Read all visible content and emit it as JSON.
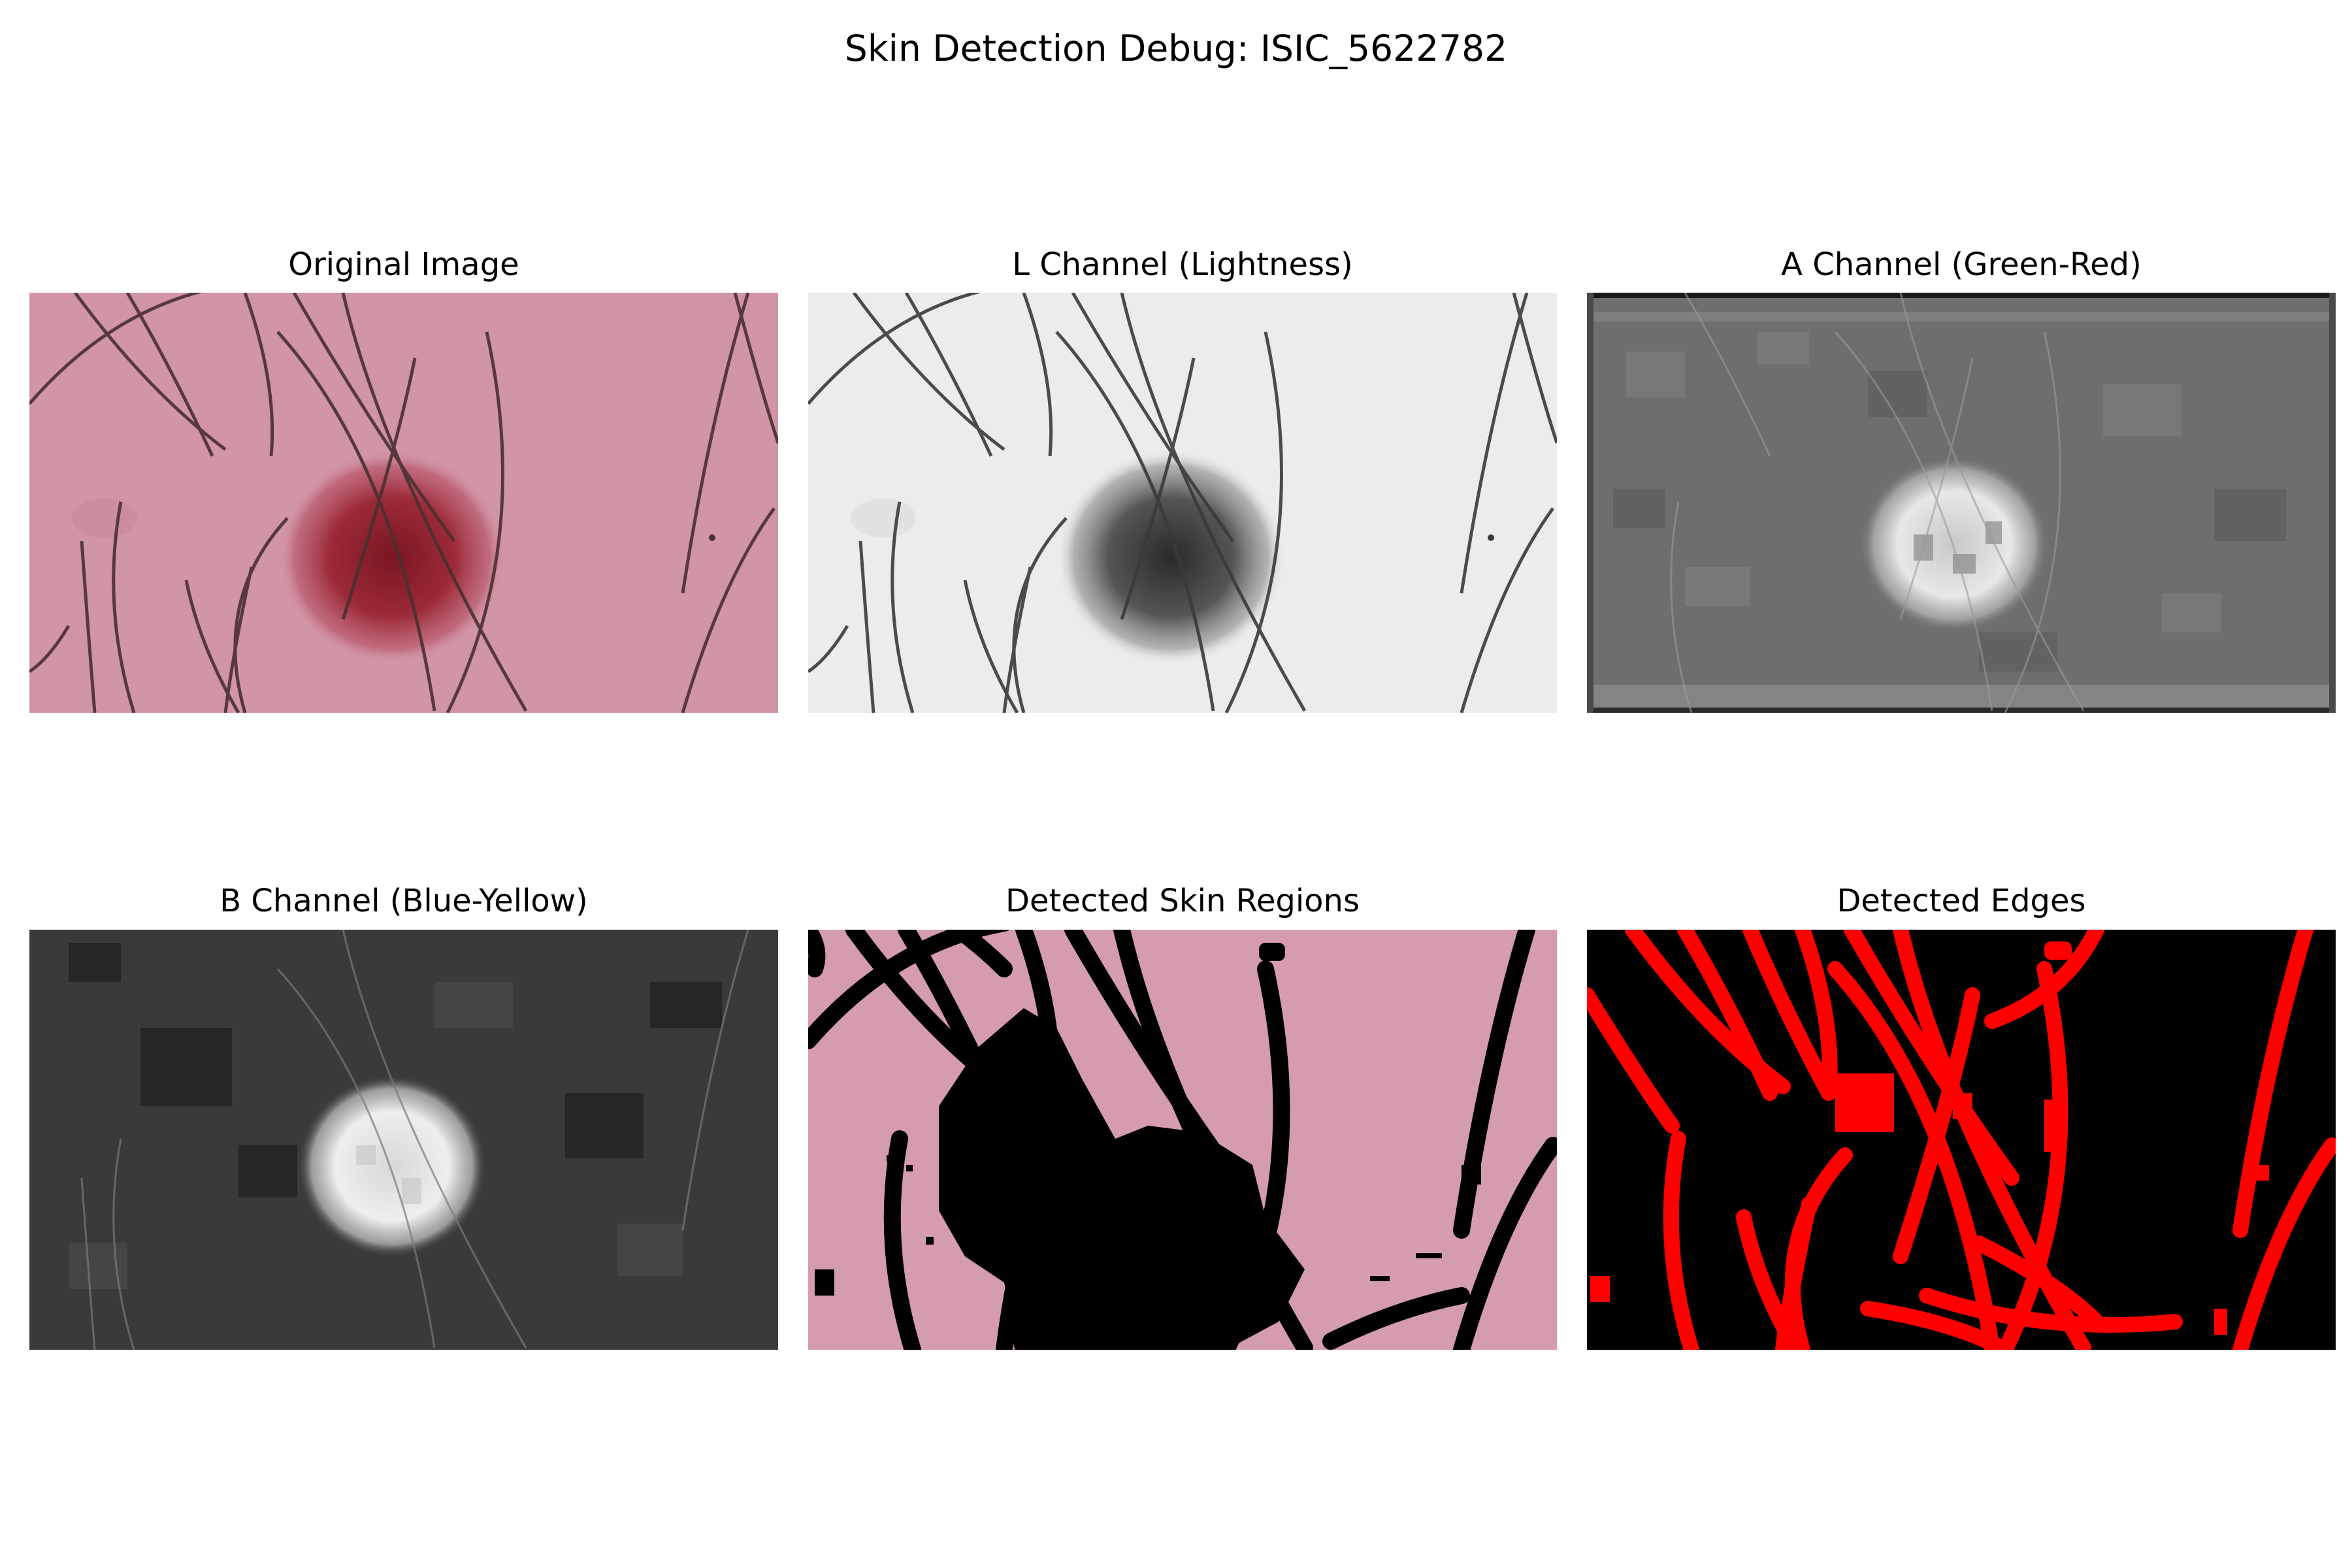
{
  "figure": {
    "suptitle": "Skin Detection Debug: ISIC_5622782"
  },
  "panels": [
    {
      "title": "Original Image"
    },
    {
      "title": "L Channel (Lightness)"
    },
    {
      "title": "A Channel (Green-Red)"
    },
    {
      "title": "B Channel (Blue-Yellow)"
    },
    {
      "title": "Detected Skin Regions"
    },
    {
      "title": "Detected Edges"
    }
  ],
  "colors": {
    "skin": "#d699a8",
    "lesion": "#9c2a38",
    "hair": "#4a3030",
    "mask_fill": "#000000",
    "edge": "#ff0000"
  }
}
